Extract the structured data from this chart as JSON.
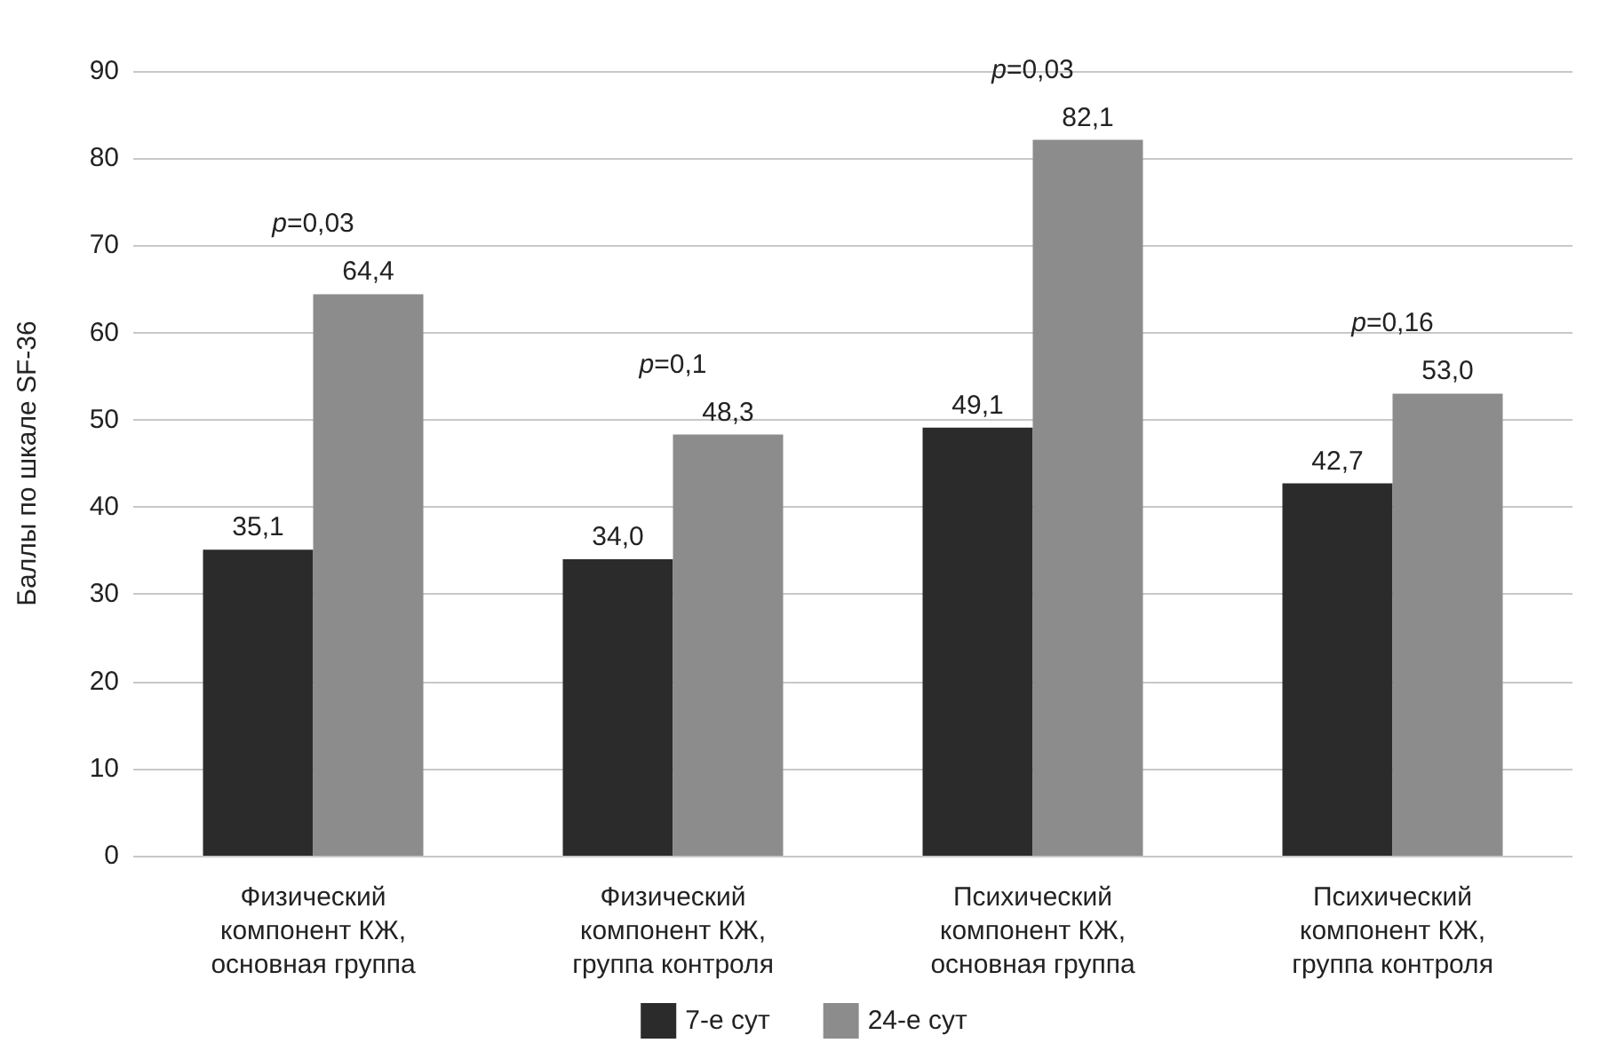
{
  "chart_data": {
    "type": "bar",
    "ylabel": "Баллы по шкале SF-36",
    "categories": [
      "Физический компонент КЖ, основная группа",
      "Физический компонент КЖ, группа контроля",
      "Психический компонент КЖ, основная группа",
      "Психический компонент КЖ, группа контроля"
    ],
    "series": [
      {
        "name": "7-е сут",
        "color": "#2b2b2b",
        "values": [
          35.1,
          34.0,
          49.1,
          42.7
        ],
        "value_labels": [
          "35,1",
          "34,0",
          "49,1",
          "42,7"
        ]
      },
      {
        "name": "24-е сут",
        "color": "#8c8c8c",
        "values": [
          64.4,
          48.3,
          82.1,
          53.0
        ],
        "value_labels": [
          "64,4",
          "48,3",
          "82,1",
          "53,0"
        ]
      }
    ],
    "annotations": [
      "p=0,03",
      "p=0,1",
      "p=0,03",
      "p=0,16"
    ],
    "ylim": [
      0,
      90
    ],
    "yticks": [
      0,
      10,
      20,
      30,
      40,
      50,
      60,
      70,
      80,
      90
    ],
    "grid": "y",
    "legend": "bottom"
  }
}
